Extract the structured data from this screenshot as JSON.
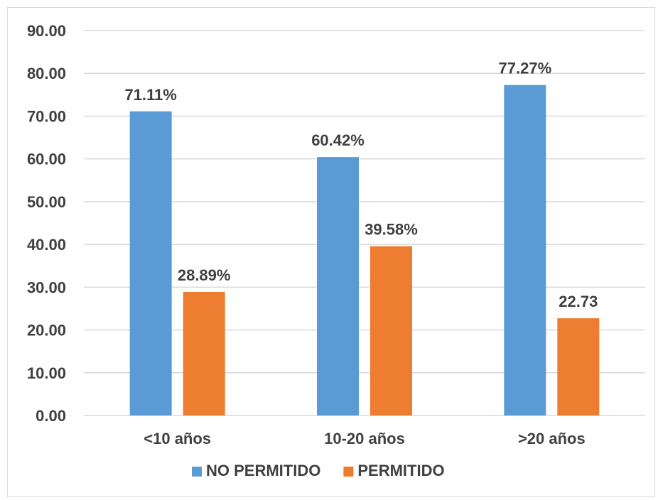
{
  "chart_data": {
    "type": "bar",
    "categories": [
      "<10 años",
      "10-20 años",
      ">20 años"
    ],
    "series": [
      {
        "name": "NO PERMITIDO",
        "values": [
          71.11,
          60.42,
          77.27
        ],
        "labels": [
          "71.11%",
          "60.42%",
          "77.27%"
        ],
        "color": "#5b9bd5"
      },
      {
        "name": "PERMITIDO",
        "values": [
          28.89,
          39.58,
          22.73
        ],
        "labels": [
          "28.89%",
          "39.58%",
          "22.73"
        ],
        "color": "#ed7d31"
      }
    ],
    "y_ticks": [
      "0.00",
      "10.00",
      "20.00",
      "30.00",
      "40.00",
      "50.00",
      "60.00",
      "70.00",
      "80.00",
      "90.00"
    ],
    "ylim": [
      0,
      90
    ],
    "grid": true,
    "legend_position": "bottom",
    "gridline_color": "#d9d9d9"
  }
}
